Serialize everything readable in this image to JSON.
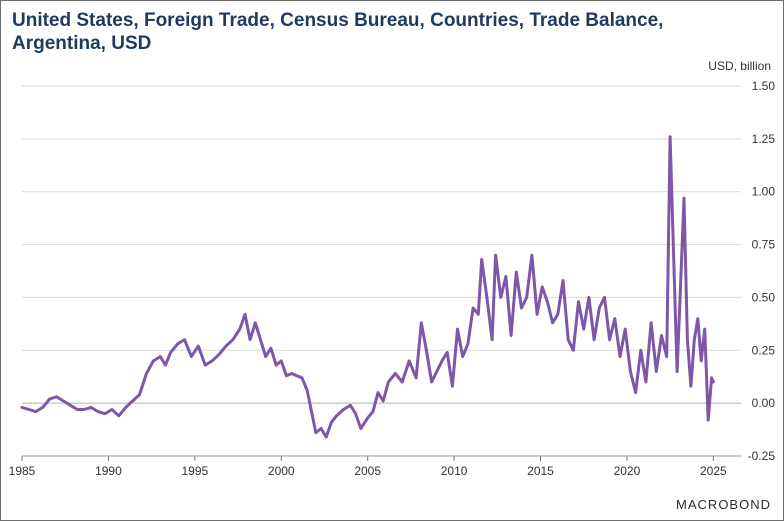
{
  "title": "United States, Foreign Trade, Census Bureau, Countries, Trade Balance, Argentina, USD",
  "unit_label": "USD, billion",
  "branding": "MACROBOND",
  "colors": {
    "series": "#7e57a8",
    "grid": "#d9d9d9",
    "title": "#1f3a5f",
    "zero_line": "#b0b0b0"
  },
  "chart_data": {
    "type": "line",
    "title": "United States, Foreign Trade, Census Bureau, Countries, Trade Balance, Argentina, USD",
    "ylabel": "USD, billion",
    "xlim": [
      1985,
      2026.6
    ],
    "ylim": [
      -0.25,
      1.5
    ],
    "x_ticks": [
      1985,
      1990,
      1995,
      2000,
      2005,
      2010,
      2015,
      2020,
      2025
    ],
    "x_tick_labels": [
      "1985",
      "1990",
      "1995",
      "2000",
      "2005",
      "2010",
      "2015",
      "2020",
      "2025"
    ],
    "y_ticks": [
      -0.25,
      0,
      0.25,
      0.5,
      0.75,
      1,
      1.25,
      1.5
    ],
    "y_tick_labels": [
      "-0.25",
      "0.00",
      "0.25",
      "0.50",
      "0.75",
      "1.00",
      "1.25",
      "1.50"
    ],
    "grid": true,
    "y_axis_side": "right",
    "series": [
      {
        "x": [
          1985.0,
          1985.4,
          1985.8,
          1986.2,
          1986.6,
          1987.0,
          1987.4,
          1987.8,
          1988.2,
          1988.6,
          1989.0,
          1989.4,
          1989.8,
          1990.2,
          1990.6,
          1991.0,
          1991.4,
          1991.8,
          1992.2,
          1992.6,
          1993.0,
          1993.3,
          1993.6,
          1994.0,
          1994.4,
          1994.8,
          1995.2,
          1995.6,
          1996.0,
          1996.4,
          1996.8,
          1997.2,
          1997.6,
          1997.9,
          1998.2,
          1998.5,
          1998.8,
          1999.1,
          1999.4,
          1999.7,
          2000.0,
          2000.3,
          2000.6,
          2000.9,
          2001.2,
          2001.5,
          2001.8,
          2002.0,
          2002.3,
          2002.6,
          2002.9,
          2003.2,
          2003.6,
          2004.0,
          2004.3,
          2004.6,
          2005.0,
          2005.3,
          2005.6,
          2005.9,
          2006.2,
          2006.6,
          2007.0,
          2007.4,
          2007.8,
          2008.1,
          2008.4,
          2008.7,
          2009.0,
          2009.3,
          2009.6,
          2009.9,
          2010.2,
          2010.5,
          2010.8,
          2011.1,
          2011.4,
          2011.6,
          2011.9,
          2012.2,
          2012.4,
          2012.7,
          2013.0,
          2013.3,
          2013.6,
          2013.9,
          2014.2,
          2014.5,
          2014.8,
          2015.1,
          2015.4,
          2015.7,
          2016.0,
          2016.3,
          2016.6,
          2016.9,
          2017.2,
          2017.5,
          2017.8,
          2018.1,
          2018.4,
          2018.7,
          2019.0,
          2019.3,
          2019.6,
          2019.9,
          2020.2,
          2020.5,
          2020.8,
          2021.1,
          2021.4,
          2021.7,
          2022.0,
          2022.3,
          2022.5,
          2022.7,
          2022.9,
          2023.1,
          2023.3,
          2023.5,
          2023.7,
          2023.9,
          2024.1,
          2024.3,
          2024.5,
          2024.7,
          2024.9,
          2025.0
        ],
        "y": [
          -0.02,
          -0.03,
          -0.04,
          -0.02,
          0.02,
          0.03,
          0.01,
          -0.01,
          -0.03,
          -0.03,
          -0.02,
          -0.04,
          -0.05,
          -0.03,
          -0.06,
          -0.02,
          0.01,
          0.04,
          0.14,
          0.2,
          0.22,
          0.18,
          0.24,
          0.28,
          0.3,
          0.22,
          0.27,
          0.18,
          0.2,
          0.23,
          0.27,
          0.3,
          0.35,
          0.42,
          0.3,
          0.38,
          0.3,
          0.22,
          0.26,
          0.18,
          0.2,
          0.13,
          0.14,
          0.13,
          0.12,
          0.06,
          -0.06,
          -0.14,
          -0.12,
          -0.16,
          -0.09,
          -0.06,
          -0.03,
          -0.01,
          -0.05,
          -0.12,
          -0.07,
          -0.04,
          0.05,
          0.01,
          0.1,
          0.14,
          0.1,
          0.2,
          0.12,
          0.38,
          0.25,
          0.1,
          0.15,
          0.2,
          0.24,
          0.08,
          0.35,
          0.22,
          0.28,
          0.45,
          0.42,
          0.68,
          0.5,
          0.3,
          0.7,
          0.5,
          0.6,
          0.32,
          0.62,
          0.45,
          0.5,
          0.7,
          0.42,
          0.55,
          0.48,
          0.38,
          0.42,
          0.58,
          0.3,
          0.25,
          0.48,
          0.35,
          0.5,
          0.3,
          0.45,
          0.5,
          0.3,
          0.4,
          0.22,
          0.35,
          0.15,
          0.05,
          0.25,
          0.1,
          0.38,
          0.15,
          0.32,
          0.22,
          1.26,
          0.7,
          0.15,
          0.55,
          0.97,
          0.3,
          0.08,
          0.3,
          0.4,
          0.2,
          0.35,
          -0.08,
          0.12,
          0.1
        ]
      }
    ]
  }
}
